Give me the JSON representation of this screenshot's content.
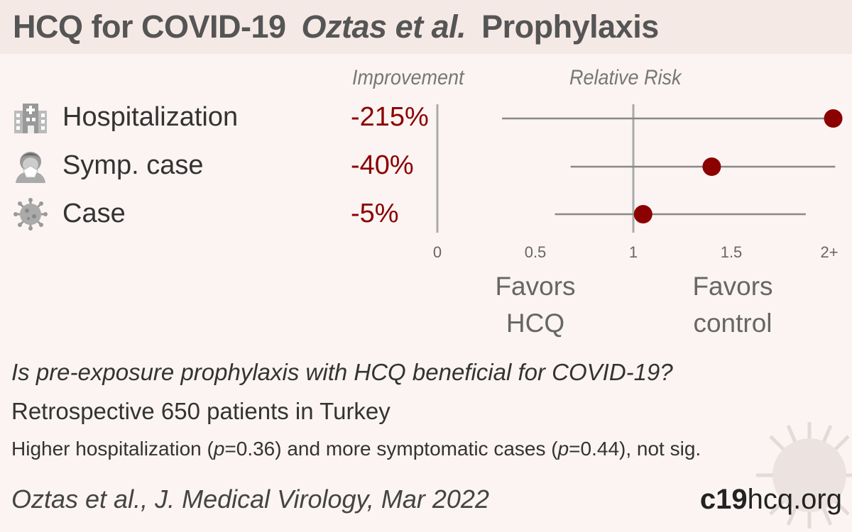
{
  "header": {
    "title_main": "HCQ for COVID-19",
    "title_study": "Oztas et al.",
    "title_type": "Prophylaxis"
  },
  "columns": {
    "improvement": "Improvement",
    "relative_risk": "Relative Risk"
  },
  "rows": [
    {
      "label": "Hospitalization",
      "improvement": "-215%",
      "icon": "hospital-icon"
    },
    {
      "label": "Symp. case",
      "improvement": "-40%",
      "icon": "sick-person-icon"
    },
    {
      "label": "Case",
      "improvement": "-5%",
      "icon": "virus-icon"
    }
  ],
  "favors": {
    "left": [
      "Favors",
      "HCQ"
    ],
    "right": [
      "Favors",
      "control"
    ]
  },
  "chart_data": {
    "type": "scatter",
    "xlabel": "",
    "ylabel": "",
    "xlim": [
      0,
      2
    ],
    "ticks": [
      "0",
      "0.5",
      "1",
      "1.5",
      "2+"
    ],
    "tick_values": [
      0,
      0.5,
      1,
      1.5,
      2
    ],
    "reference_line": 1,
    "series": [
      {
        "category": "Hospitalization",
        "rr": 2.02,
        "ci_low": 0.33,
        "ci_high": 2.03
      },
      {
        "category": "Symp. case",
        "rr": 1.4,
        "ci_low": 0.68,
        "ci_high": 2.03
      },
      {
        "category": "Case",
        "rr": 1.05,
        "ci_low": 0.6,
        "ci_high": 1.88
      }
    ],
    "colors": {
      "point": "#8b0000",
      "line": "#888888"
    }
  },
  "footer": {
    "question": "Is pre-exposure prophylaxis with HCQ beneficial for COVID-19?",
    "study": "Retrospective 650 patients in Turkey",
    "result_a": "Higher hospitalization (",
    "result_p1_label": "p",
    "result_p1": "=0.36) and more symptomatic cases (",
    "result_p2_label": "p",
    "result_p2": "=0.44), not sig.",
    "citation": "Oztas et al., J. Medical Virology, Mar 2022",
    "brand_bold": "c19",
    "brand_rest": "hcq.org"
  }
}
